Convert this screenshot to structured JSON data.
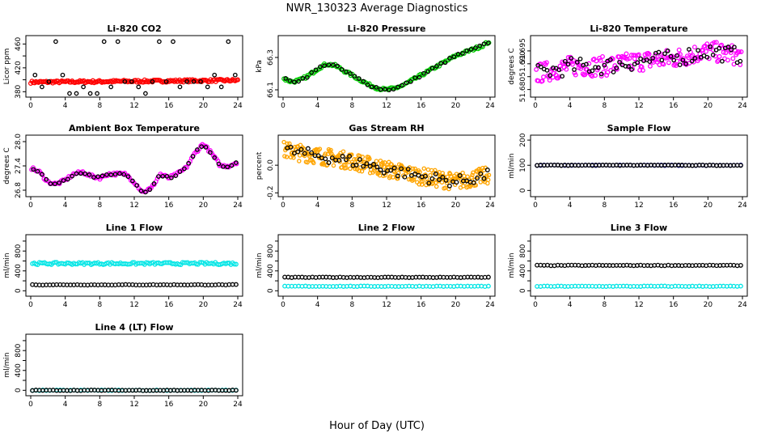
{
  "figure": {
    "title": "NWR_130323  Average Diagnostics",
    "xlabel": "Hour of Day (UTC)"
  },
  "chart_data": [
    {
      "type": "scatter",
      "title": "Li-820 CO2",
      "ylabel": "Licor ppm",
      "xlim": [
        0,
        24
      ],
      "ylim": [
        375,
        470
      ],
      "xticks": [
        "0",
        "4",
        "8",
        "12",
        "16",
        "20",
        "24"
      ],
      "yticks": [
        380,
        400,
        420,
        440,
        460
      ],
      "yticklabels": [
        "380",
        "",
        "420",
        "",
        "460"
      ],
      "series": [
        {
          "color": "#ff0000",
          "style": "band",
          "x": [
            0,
            24
          ],
          "y": [
            396,
            399
          ]
        },
        {
          "color": "#000000",
          "style": "flat3",
          "levels": [
            464,
            408,
            397,
            388,
            377
          ]
        }
      ]
    },
    {
      "type": "scatter",
      "title": "Li-820 Pressure",
      "ylabel": "kPa",
      "xlim": [
        0,
        24
      ],
      "ylim": [
        66.07,
        66.42
      ],
      "xticks": [
        "0",
        "4",
        "8",
        "12",
        "16",
        "20",
        "24"
      ],
      "yticks": [
        66.1,
        66.3
      ],
      "yticklabels": [
        "66.1",
        "66.3"
      ],
      "series": [
        {
          "color": "#00cc00",
          "style": "curve",
          "x": [
            0,
            1,
            2,
            3,
            4,
            5,
            6,
            7,
            8,
            9,
            10,
            11,
            12,
            13,
            14,
            15,
            16,
            17,
            18,
            19,
            20,
            21,
            22,
            23,
            24
          ],
          "y": [
            66.17,
            66.15,
            66.16,
            66.19,
            66.23,
            66.26,
            66.25,
            66.22,
            66.19,
            66.16,
            66.13,
            66.11,
            66.1,
            66.11,
            66.13,
            66.16,
            66.19,
            66.22,
            66.25,
            66.28,
            66.31,
            66.33,
            66.35,
            66.37,
            66.4
          ]
        }
      ]
    },
    {
      "type": "scatter",
      "title": "Li-820 Temperature",
      "ylabel": "degrees C",
      "xlim": [
        0,
        24
      ],
      "ylim": [
        51.678,
        51.7
      ],
      "xticks": [
        "0",
        "4",
        "8",
        "12",
        "16",
        "20",
        "24"
      ],
      "yticks": [
        51.68,
        51.685,
        51.69,
        51.695
      ],
      "yticklabels": [
        "51.680",
        "",
        "51.690",
        "51.695"
      ],
      "series": [
        {
          "color": "#ff00ff",
          "style": "noisy",
          "x": [
            0,
            4,
            8,
            12,
            16,
            20,
            24
          ],
          "y": [
            51.686,
            51.689,
            51.689,
            51.691,
            51.692,
            51.695,
            51.693
          ]
        }
      ]
    },
    {
      "type": "scatter",
      "title": "Ambient Box Temperature",
      "ylabel": "degrees C",
      "xlim": [
        0,
        24
      ],
      "ylim": [
        26.7,
        28.1
      ],
      "xticks": [
        "0",
        "4",
        "8",
        "12",
        "16",
        "20",
        "24"
      ],
      "yticks": [
        26.8,
        27.4,
        28.0
      ],
      "yticklabels": [
        "26.8",
        "27.4",
        "28.0"
      ],
      "series": [
        {
          "color": "#ff00ff",
          "style": "curve",
          "x": [
            0,
            1,
            2,
            3,
            4,
            5,
            6,
            7,
            8,
            9,
            10,
            11,
            12,
            13,
            14,
            15,
            16,
            17,
            18,
            19,
            20,
            21,
            22,
            23,
            24
          ],
          "y": [
            27.35,
            27.25,
            27.0,
            26.95,
            27.05,
            27.2,
            27.25,
            27.15,
            27.1,
            27.2,
            27.2,
            27.2,
            27.0,
            26.75,
            26.85,
            27.2,
            27.1,
            27.2,
            27.35,
            27.7,
            27.95,
            27.7,
            27.4,
            27.4,
            27.5
          ]
        }
      ]
    },
    {
      "type": "scatter",
      "title": "Gas Stream RH",
      "ylabel": "percent",
      "xlim": [
        0,
        24
      ],
      "ylim": [
        -0.21,
        0.2
      ],
      "xticks": [
        "0",
        "4",
        "8",
        "12",
        "16",
        "20",
        "24"
      ],
      "yticks": [
        -0.2,
        0.0
      ],
      "yticklabels": [
        "-0.2",
        "0.0"
      ],
      "series": [
        {
          "color": "#ffa500",
          "style": "wideband",
          "x": [
            0,
            4,
            8,
            12,
            16,
            20,
            24
          ],
          "y": [
            0.11,
            0.07,
            0.03,
            -0.03,
            -0.08,
            -0.12,
            -0.07
          ]
        }
      ]
    },
    {
      "type": "scatter",
      "title": "Sample Flow",
      "ylabel": "ml/min",
      "xlim": [
        0,
        24
      ],
      "ylim": [
        -15,
        210
      ],
      "xticks": [
        "0",
        "4",
        "8",
        "12",
        "16",
        "20",
        "24"
      ],
      "yticks": [
        0,
        100,
        200
      ],
      "yticklabels": [
        "0",
        "100",
        "200"
      ],
      "series": [
        {
          "color": "#00008b",
          "style": "flat",
          "y": 100
        },
        {
          "color": "#000000",
          "style": "flat",
          "y": 100
        }
      ]
    },
    {
      "type": "scatter",
      "title": "Line 1 Flow",
      "ylabel": "ml/min",
      "xlim": [
        0,
        24
      ],
      "ylim": [
        -60,
        1080
      ],
      "xticks": [
        "0",
        "4",
        "8",
        "12",
        "16",
        "20",
        "24"
      ],
      "yticks": [
        0,
        200,
        400,
        600,
        800,
        1000
      ],
      "yticklabels": [
        "0",
        "",
        "400",
        "",
        "800",
        ""
      ],
      "series": [
        {
          "color": "#00e5e5",
          "style": "flat2",
          "y": 540
        },
        {
          "color": "#000000",
          "style": "flat",
          "y": 120
        }
      ]
    },
    {
      "type": "scatter",
      "title": "Line 2 Flow",
      "ylabel": "ml/min",
      "xlim": [
        0,
        24
      ],
      "ylim": [
        -60,
        1080
      ],
      "xticks": [
        "0",
        "4",
        "8",
        "12",
        "16",
        "20",
        "24"
      ],
      "yticks": [
        0,
        200,
        400,
        600,
        800,
        1000
      ],
      "yticklabels": [
        "0",
        "",
        "400",
        "",
        "800",
        ""
      ],
      "series": [
        {
          "color": "#00e5e5",
          "style": "flat",
          "y": 90
        },
        {
          "color": "#000000",
          "style": "flat",
          "y": 270
        }
      ]
    },
    {
      "type": "scatter",
      "title": "Line 3 Flow",
      "ylabel": "ml/min",
      "xlim": [
        0,
        24
      ],
      "ylim": [
        -60,
        1080
      ],
      "xticks": [
        "0",
        "4",
        "8",
        "12",
        "16",
        "20",
        "24"
      ],
      "yticks": [
        0,
        200,
        400,
        600,
        800,
        1000
      ],
      "yticklabels": [
        "0",
        "",
        "400",
        "",
        "800",
        ""
      ],
      "series": [
        {
          "color": "#00e5e5",
          "style": "flat",
          "y": 90
        },
        {
          "color": "#000000",
          "style": "flat",
          "y": 510
        }
      ]
    },
    {
      "type": "scatter",
      "title": "Line 4 (LT) Flow",
      "ylabel": "ml/min",
      "xlim": [
        0,
        24
      ],
      "ylim": [
        -60,
        1080
      ],
      "xticks": [
        "0",
        "4",
        "8",
        "12",
        "16",
        "20",
        "24"
      ],
      "yticks": [
        0,
        200,
        400,
        600,
        800,
        1000
      ],
      "yticklabels": [
        "0",
        "",
        "400",
        "",
        "800",
        ""
      ],
      "series": [
        {
          "color": "#00e5e5",
          "style": "flat",
          "y": 0
        },
        {
          "color": "#000000",
          "style": "flat",
          "y": 0
        }
      ]
    }
  ]
}
